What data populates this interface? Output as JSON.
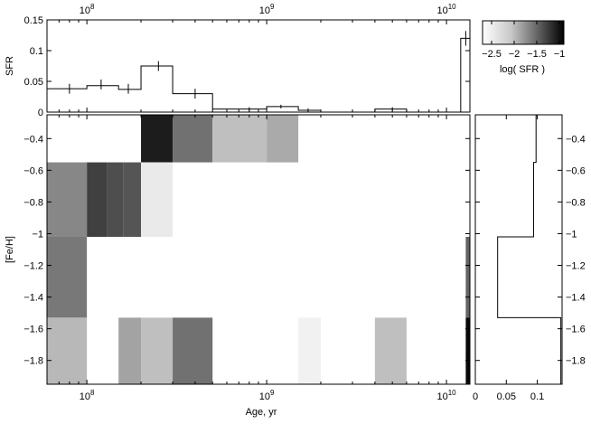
{
  "chart_data": [
    {
      "type": "step-histogram",
      "panel": "top",
      "ylabel": "SFR",
      "ylim": [
        0,
        0.15
      ],
      "x_scale": "log",
      "xlim": [
        60000000,
        13500000000
      ],
      "x_ticks": [
        "10^8",
        "10^9",
        "10^10"
      ],
      "y_ticks": [
        "0",
        "0.05",
        "0.1",
        "0.15"
      ],
      "bins": [
        {
          "x0": 60000000,
          "x1": 100000000,
          "sfr": 0.038
        },
        {
          "x0": 100000000,
          "x1": 150000000,
          "sfr": 0.043
        },
        {
          "x0": 150000000,
          "x1": 200000000,
          "sfr": 0.037
        },
        {
          "x0": 200000000,
          "x1": 300000000,
          "sfr": 0.075
        },
        {
          "x0": 300000000,
          "x1": 500000000,
          "sfr": 0.03
        },
        {
          "x0": 500000000,
          "x1": 1000000000,
          "sfr": 0.005
        },
        {
          "x0": 1000000000,
          "x1": 1500000000,
          "sfr": 0.009
        },
        {
          "x0": 1500000000,
          "x1": 2000000000,
          "sfr": 0.003
        },
        {
          "x0": 2000000000,
          "x1": 4000000000,
          "sfr": 0.0
        },
        {
          "x0": 4000000000,
          "x1": 6000000000,
          "sfr": 0.005
        },
        {
          "x0": 6000000000,
          "x1": 12000000000,
          "sfr": 0.0
        },
        {
          "x0": 12000000000,
          "x1": 13500000000,
          "sfr": 0.12
        }
      ],
      "errors": [
        {
          "x": 80000000,
          "y": 0.038,
          "err": 0.008
        },
        {
          "x": 120000000,
          "y": 0.045,
          "err": 0.008
        },
        {
          "x": 170000000,
          "y": 0.038,
          "err": 0.008
        },
        {
          "x": 250000000,
          "y": 0.075,
          "err": 0.008
        },
        {
          "x": 400000000,
          "y": 0.03,
          "err": 0.008
        },
        {
          "x": 800000000,
          "y": 0.005,
          "err": 0.003
        },
        {
          "x": 1200000000,
          "y": 0.009,
          "err": 0.003
        },
        {
          "x": 1700000000,
          "y": 0.003,
          "err": 0.003
        },
        {
          "x": 5000000000,
          "y": 0.005,
          "err": 0.003
        },
        {
          "x": 12800000000,
          "y": 0.12,
          "err": 0.012
        }
      ]
    },
    {
      "type": "heatmap",
      "panel": "main",
      "xlabel": "Age, yr",
      "ylabel": "[Fe/H]",
      "x_scale": "log",
      "xlim": [
        60000000,
        13500000000
      ],
      "ylim": [
        -1.95,
        -0.25
      ],
      "x_ticks": [
        "10^8",
        "10^9",
        "10^10"
      ],
      "y_ticks": [
        "-0.4",
        "-0.6",
        "-0.8",
        "-1",
        "-1.2",
        "-1.4",
        "-1.6",
        "-1.8"
      ],
      "cells": [
        {
          "x0": 200000000,
          "x1": 300000000,
          "y0": -0.55,
          "y1": -0.25,
          "log_sfr": -1.1
        },
        {
          "x0": 300000000,
          "x1": 500000000,
          "y0": -0.55,
          "y1": -0.25,
          "log_sfr": -1.7
        },
        {
          "x0": 500000000,
          "x1": 1000000000,
          "y0": -0.55,
          "y1": -0.25,
          "log_sfr": -2.25
        },
        {
          "x0": 1000000000,
          "x1": 1500000000,
          "y0": -0.55,
          "y1": -0.25,
          "log_sfr": -2.1
        },
        {
          "x0": 60000000,
          "x1": 100000000,
          "y0": -1.02,
          "y1": -0.55,
          "log_sfr": -1.85
        },
        {
          "x0": 100000000,
          "x1": 130000000,
          "y0": -1.02,
          "y1": -0.55,
          "log_sfr": -1.35
        },
        {
          "x0": 130000000,
          "x1": 160000000,
          "y0": -1.02,
          "y1": -0.55,
          "log_sfr": -1.45
        },
        {
          "x0": 160000000,
          "x1": 200000000,
          "y0": -1.02,
          "y1": -0.55,
          "log_sfr": -1.5
        },
        {
          "x0": 200000000,
          "x1": 300000000,
          "y0": -1.02,
          "y1": -0.55,
          "log_sfr": -2.55
        },
        {
          "x0": 60000000,
          "x1": 100000000,
          "y0": -1.53,
          "y1": -1.02,
          "log_sfr": -1.75
        },
        {
          "x0": 12800000000,
          "x1": 13500000000,
          "y0": -1.53,
          "y1": -1.02,
          "log_sfr": -1.6
        },
        {
          "x0": 60000000,
          "x1": 100000000,
          "y0": -1.95,
          "y1": -1.53,
          "log_sfr": -2.2
        },
        {
          "x0": 150000000,
          "x1": 200000000,
          "y0": -1.95,
          "y1": -1.53,
          "log_sfr": -2.05
        },
        {
          "x0": 200000000,
          "x1": 300000000,
          "y0": -1.95,
          "y1": -1.53,
          "log_sfr": -2.25
        },
        {
          "x0": 300000000,
          "x1": 500000000,
          "y0": -1.95,
          "y1": -1.53,
          "log_sfr": -1.7
        },
        {
          "x0": 1500000000,
          "x1": 2000000000,
          "y0": -1.95,
          "y1": -1.53,
          "log_sfr": -2.6
        },
        {
          "x0": 4000000000,
          "x1": 6000000000,
          "y0": -1.95,
          "y1": -1.53,
          "log_sfr": -2.25
        },
        {
          "x0": 12800000000,
          "x1": 13500000000,
          "y0": -1.95,
          "y1": -1.53,
          "log_sfr": -0.95
        }
      ]
    },
    {
      "type": "step-histogram",
      "panel": "right",
      "orientation": "horizontal",
      "xlim": [
        0,
        0.14
      ],
      "ylim": [
        -1.95,
        -0.25
      ],
      "x_ticks": [
        "0",
        "0.05",
        "0.1"
      ],
      "y_ticks": [
        "-0.4",
        "-0.6",
        "-0.8",
        "-1",
        "-1.2",
        "-1.4",
        "-1.6",
        "-1.8"
      ],
      "bins": [
        {
          "y0": -0.55,
          "y1": -0.25,
          "sfr": 0.098
        },
        {
          "y0": -1.02,
          "y1": -0.55,
          "sfr": 0.094
        },
        {
          "y0": -1.53,
          "y1": -1.02,
          "sfr": 0.036
        },
        {
          "y0": -1.95,
          "y1": -1.53,
          "sfr": 0.138
        }
      ]
    }
  ],
  "colorbar": {
    "label": "log( SFR )",
    "ticks": [
      "-2.5",
      "-2",
      "-1.5",
      "-1"
    ],
    "range": [
      -2.7,
      -0.9
    ],
    "colormap": "white-to-black"
  }
}
